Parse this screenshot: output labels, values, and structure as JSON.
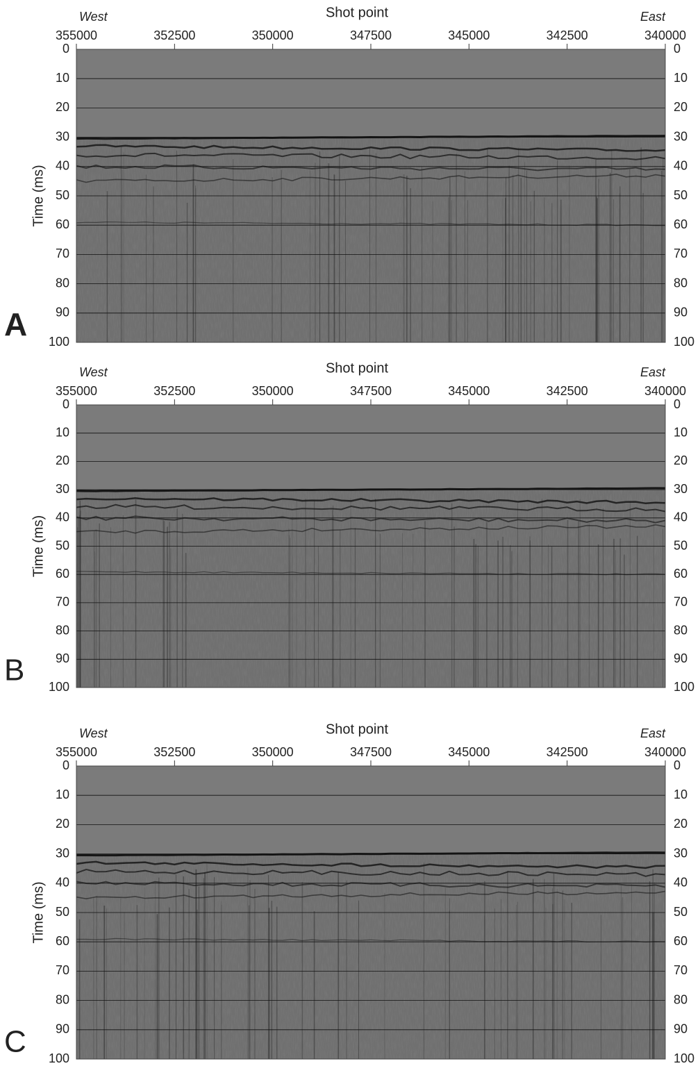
{
  "chart_data": [
    {
      "type": "seismic",
      "panel_label": "A",
      "title": "Shot point",
      "x_start_label": "West",
      "x_end_label": "East",
      "ylabel": "Time (ms)",
      "xlim": [
        355000,
        340000
      ],
      "xticks": [
        355000,
        352500,
        350000,
        347500,
        345000,
        342500,
        340000
      ],
      "ylim": [
        100,
        0
      ],
      "yticks": [
        0,
        10,
        20,
        30,
        40,
        50,
        60,
        70,
        80,
        90,
        100
      ],
      "grid": true
    },
    {
      "type": "seismic",
      "panel_label": "B",
      "title": "Shot point",
      "x_start_label": "West",
      "x_end_label": "East",
      "ylabel": "Time (ms)",
      "xlim": [
        355000,
        340000
      ],
      "xticks": [
        355000,
        352500,
        350000,
        347500,
        345000,
        342500,
        340000
      ],
      "ylim": [
        100,
        0
      ],
      "yticks": [
        0,
        10,
        20,
        30,
        40,
        50,
        60,
        70,
        80,
        90,
        100
      ],
      "grid": true
    },
    {
      "type": "seismic",
      "panel_label": "C",
      "title": "Shot point",
      "x_start_label": "West",
      "x_end_label": "East",
      "ylabel": "Time (ms)",
      "xlim": [
        355000,
        340000
      ],
      "xticks": [
        355000,
        352500,
        350000,
        347500,
        345000,
        342500,
        340000
      ],
      "ylim": [
        100,
        0
      ],
      "yticks": [
        0,
        10,
        20,
        30,
        40,
        50,
        60,
        70,
        80,
        90,
        100
      ],
      "grid": true
    }
  ]
}
